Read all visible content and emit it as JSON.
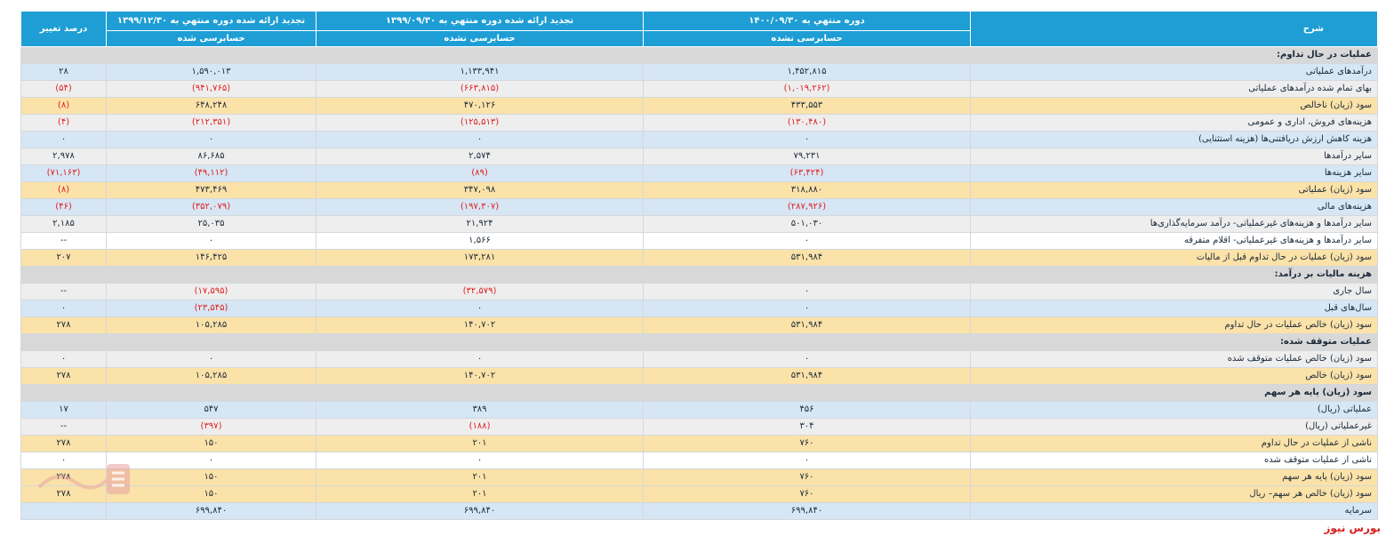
{
  "header": {
    "desc": "شرح",
    "p1": "دوره منتهي به ۱۴۰۰/۰۹/۳۰",
    "p2": "تجدید ارائه شده دوره منتهي به ۱۳۹۹/۰۹/۳۰",
    "p3": "تجدید ارائه شده دوره منتهي به ۱۳۹۹/۱۲/۳۰",
    "pct": "درصد تغییر",
    "p1_sub": "حسابرسی نشده",
    "p2_sub": "حسابرسی نشده",
    "p3_sub": "حسابرسی شده"
  },
  "rows": [
    {
      "label": "عملیات در حال تداوم:",
      "v1": "",
      "v2": "",
      "v3": "",
      "pct": "",
      "style": "section"
    },
    {
      "label": "درآمدهای عملیاتی",
      "v1": "۱,۴۵۲,۸۱۵",
      "v2": "۱,۱۳۳,۹۴۱",
      "v3": "۱,۵۹۰,۰۱۳",
      "pct": "۲۸",
      "style": "blue"
    },
    {
      "label": "بهای تمام شده درآمدهای عملیاتی",
      "v1": "(۱,۰۱۹,۲۶۲)",
      "v2": "(۶۶۳,۸۱۵)",
      "v3": "(۹۴۱,۷۶۵)",
      "pct": "(۵۴)",
      "style": "grey"
    },
    {
      "label": "سود (زیان) ناخالص",
      "v1": "۴۳۳,۵۵۳",
      "v2": "۴۷۰,۱۲۶",
      "v3": "۶۴۸,۲۴۸",
      "pct": "(۸)",
      "style": "total"
    },
    {
      "label": "هزینه‌های فروش، اداری و عمومی",
      "v1": "(۱۳۰,۴۸۰)",
      "v2": "(۱۲۵,۵۱۳)",
      "v3": "(۲۱۲,۳۵۱)",
      "pct": "(۴)",
      "style": "grey"
    },
    {
      "label": "هزینه کاهش ارزش دریافتنی‌ها (هزینه استثنایی)",
      "v1": "۰",
      "v2": "۰",
      "v3": "۰",
      "pct": "۰",
      "style": "blue"
    },
    {
      "label": "سایر درآمدها",
      "v1": "۷۹,۲۳۱",
      "v2": "۲,۵۷۴",
      "v3": "۸۶,۶۸۵",
      "pct": "۲,۹۷۸",
      "style": "grey"
    },
    {
      "label": "سایر هزینه‌ها",
      "v1": "(۶۳,۴۲۴)",
      "v2": "(۸۹)",
      "v3": "(۴۹,۱۱۲)",
      "pct": "(۷۱,۱۶۳)",
      "style": "blue"
    },
    {
      "label": "سود (زیان) عملیاتی",
      "v1": "۳۱۸,۸۸۰",
      "v2": "۳۴۷,۰۹۸",
      "v3": "۴۷۳,۴۶۹",
      "pct": "(۸)",
      "style": "total"
    },
    {
      "label": "هزینه‌های مالی",
      "v1": "(۲۸۷,۹۲۶)",
      "v2": "(۱۹۷,۳۰۷)",
      "v3": "(۳۵۲,۰۷۹)",
      "pct": "(۴۶)",
      "style": "blue"
    },
    {
      "label": "سایر درآمدها و هزینه‌های غیرعملیاتی- درآمد سرمایه‌گذاری‌ها",
      "v1": "۵۰۱,۰۳۰",
      "v2": "۲۱,۹۲۴",
      "v3": "۲۵,۰۳۵",
      "pct": "۲,۱۸۵",
      "style": "grey"
    },
    {
      "label": "سایر درآمدها و هزینه‌های غیرعملیاتی- اقلام متفرقه",
      "v1": "۰",
      "v2": "۱,۵۶۶",
      "v3": "۰",
      "pct": "--",
      "style": "white"
    },
    {
      "label": "سود (زیان) عملیات در حال تداوم قبل از مالیات",
      "v1": "۵۳۱,۹۸۴",
      "v2": "۱۷۳,۲۸۱",
      "v3": "۱۴۶,۴۲۵",
      "pct": "۲۰۷",
      "style": "total"
    },
    {
      "label": "هزینه مالیات بر درآمد:",
      "v1": "",
      "v2": "",
      "v3": "",
      "pct": "",
      "style": "section"
    },
    {
      "label": "سال جاری",
      "v1": "۰",
      "v2": "(۳۲,۵۷۹)",
      "v3": "(۱۷,۵۹۵)",
      "pct": "--",
      "style": "grey"
    },
    {
      "label": "سال‌های قبل",
      "v1": "۰",
      "v2": "۰",
      "v3": "(۲۳,۵۴۵)",
      "pct": "۰",
      "style": "blue"
    },
    {
      "label": "سود (زیان) خالص عملیات در حال تداوم",
      "v1": "۵۳۱,۹۸۴",
      "v2": "۱۴۰,۷۰۲",
      "v3": "۱۰۵,۲۸۵",
      "pct": "۲۷۸",
      "style": "total"
    },
    {
      "label": "عملیات متوقف شده:",
      "v1": "",
      "v2": "",
      "v3": "",
      "pct": "",
      "style": "section"
    },
    {
      "label": "سود (زیان) خالص عملیات متوقف شده",
      "v1": "۰",
      "v2": "۰",
      "v3": "۰",
      "pct": "۰",
      "style": "grey"
    },
    {
      "label": "سود (زیان) خالص",
      "v1": "۵۳۱,۹۸۴",
      "v2": "۱۴۰,۷۰۲",
      "v3": "۱۰۵,۲۸۵",
      "pct": "۲۷۸",
      "style": "total"
    },
    {
      "label": "سود (زیان) پایه هر سهم",
      "v1": "",
      "v2": "",
      "v3": "",
      "pct": "",
      "style": "section"
    },
    {
      "label": "عملیاتی (ریال)",
      "v1": "۴۵۶",
      "v2": "۳۸۹",
      "v3": "۵۴۷",
      "pct": "۱۷",
      "style": "blue"
    },
    {
      "label": "غیرعملیاتی (ریال)",
      "v1": "۳۰۴",
      "v2": "(۱۸۸)",
      "v3": "(۳۹۷)",
      "pct": "--",
      "style": "grey"
    },
    {
      "label": "ناشی از عملیات در حال تداوم",
      "v1": "۷۶۰",
      "v2": "۲۰۱",
      "v3": "۱۵۰",
      "pct": "۲۷۸",
      "style": "total"
    },
    {
      "label": "ناشی از عملیات متوقف شده",
      "v1": "۰",
      "v2": "۰",
      "v3": "۰",
      "pct": "۰",
      "style": "white"
    },
    {
      "label": "سود (زیان) پایه هر سهم",
      "v1": "۷۶۰",
      "v2": "۲۰۱",
      "v3": "۱۵۰",
      "pct": "۲۷۸",
      "style": "total"
    },
    {
      "label": "سود (زیان) خالص هر سهم– ریال",
      "v1": "۷۶۰",
      "v2": "۲۰۱",
      "v3": "۱۵۰",
      "pct": "۲۷۸",
      "style": "total"
    },
    {
      "label": "سرمایه",
      "v1": "۶۹۹,۸۴۰",
      "v2": "۶۹۹,۸۴۰",
      "v3": "۶۹۹,۸۴۰",
      "pct": "",
      "style": "blue"
    }
  ],
  "watermark": "بورس نیوز",
  "colors": {
    "header": "#1e9ed5",
    "negative": "#e02020",
    "total_row": "#fbe2a8"
  }
}
